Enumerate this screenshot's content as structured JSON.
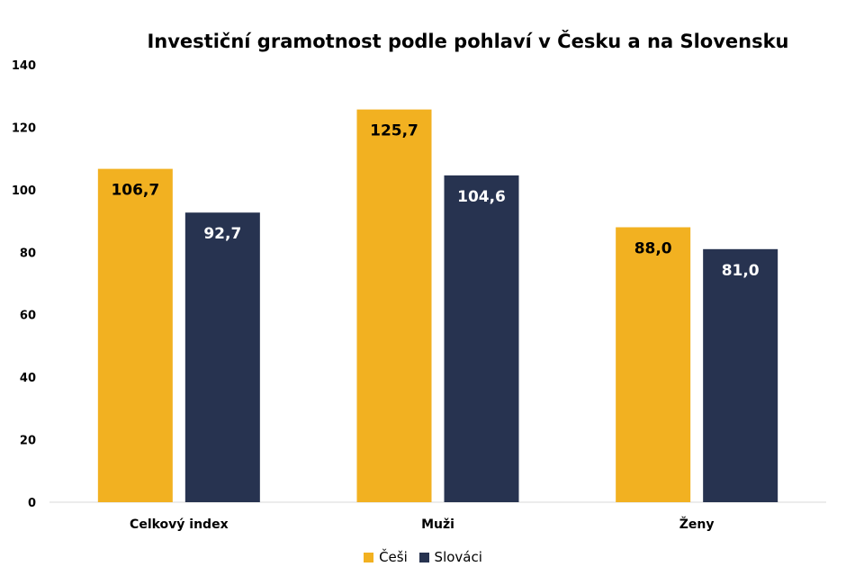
{
  "chart_data": {
    "type": "bar",
    "title": "Investiční gramotnost podle pohlaví v Česku a na Slovensku",
    "categories": [
      "Celkový index",
      "Muži",
      "Ženy"
    ],
    "series": [
      {
        "name": "Češi",
        "color": "#F2B121",
        "values": [
          106.7,
          125.7,
          88.0
        ],
        "labels": [
          "106,7",
          "125,7",
          "88,0"
        ],
        "label_color": "#000000"
      },
      {
        "name": "Slováci",
        "color": "#273350",
        "values": [
          92.7,
          104.6,
          81.0
        ],
        "labels": [
          "92,7",
          "104,6",
          "81,0"
        ],
        "label_color": "#FFFFFF"
      }
    ],
    "ylim": [
      0,
      140
    ],
    "yticks": [
      "0",
      "20",
      "40",
      "60",
      "80",
      "100",
      "120",
      "140"
    ],
    "xlabel": "",
    "ylabel": "",
    "grid": false,
    "legend_position": "bottom"
  }
}
